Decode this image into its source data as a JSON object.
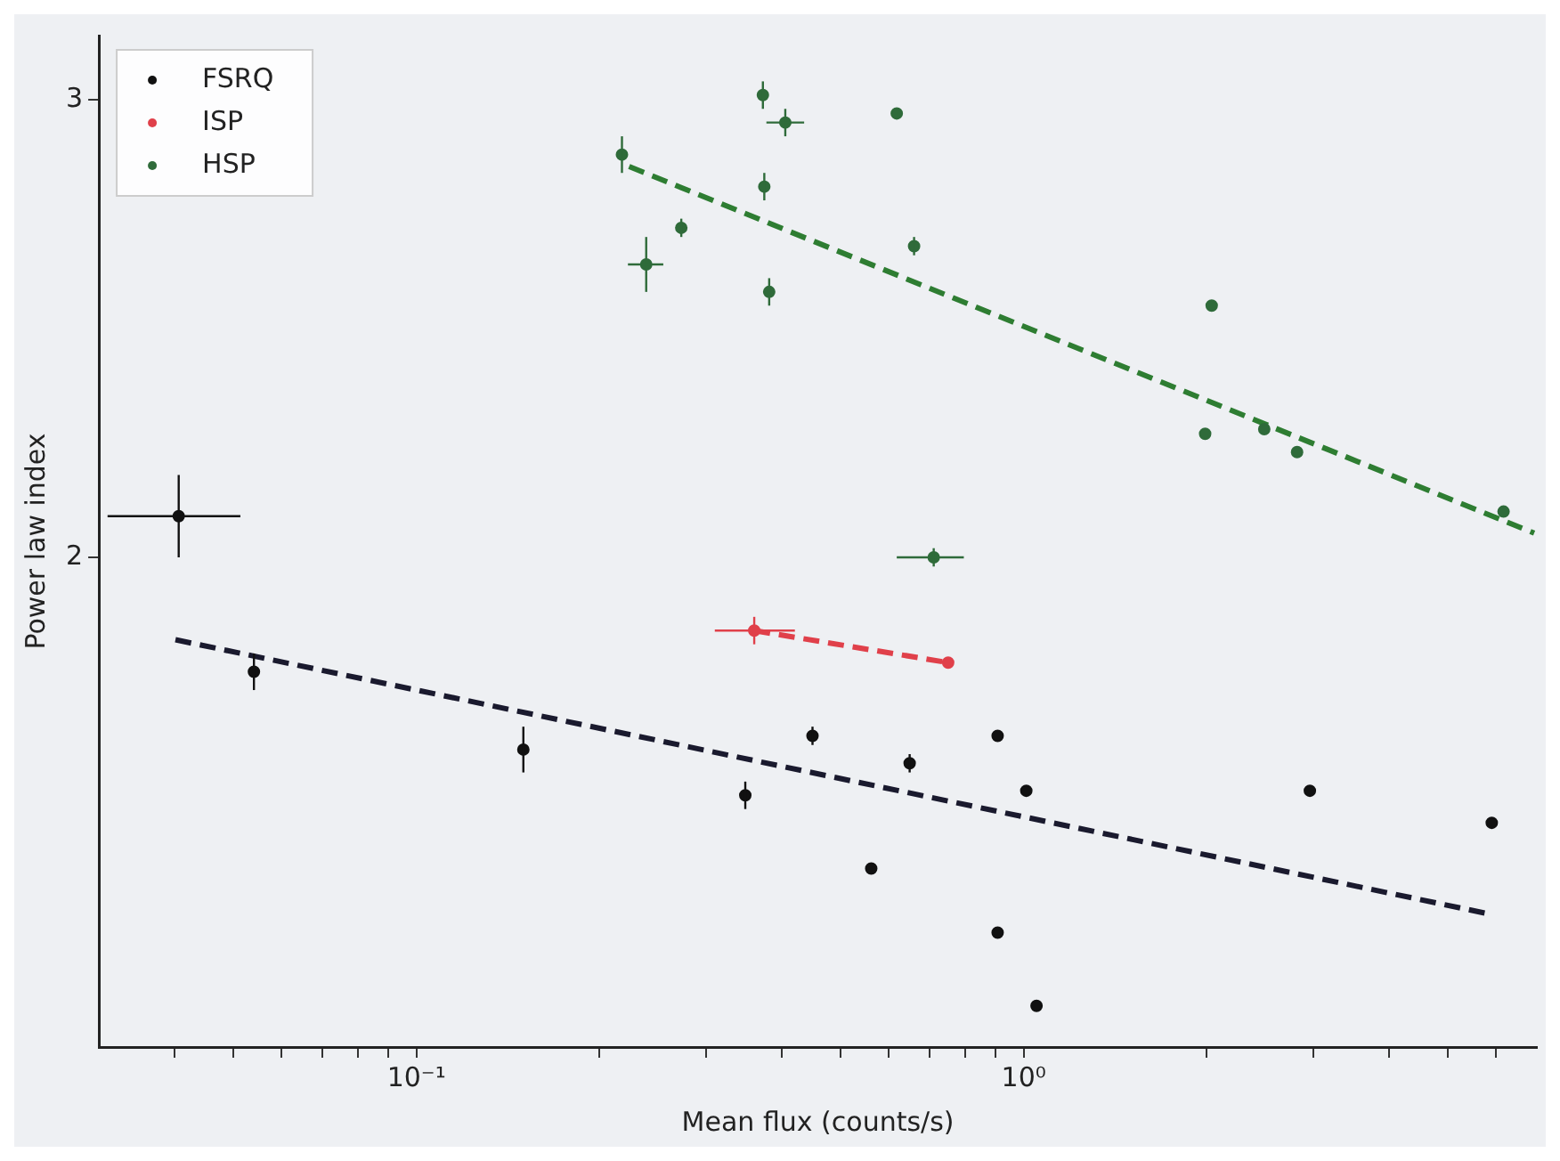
{
  "chart_data": {
    "type": "scatter",
    "xlabel": "Mean flux (counts/s)",
    "ylabel": "Power law index",
    "log": "x",
    "grid": false,
    "legend": "top left",
    "marker": "circle",
    "xlim": [
      0.03,
      7
    ],
    "ylim": [
      0.93,
      3.14
    ],
    "xticks": [
      {
        "value": 0.04,
        "label": null
      },
      {
        "value": 0.05,
        "label": null
      },
      {
        "value": 0.06,
        "label": null
      },
      {
        "value": 0.07,
        "label": null
      },
      {
        "value": 0.08,
        "label": null
      },
      {
        "value": 0.09,
        "label": null
      },
      {
        "value": 0.1,
        "label": "10⁻¹"
      },
      {
        "value": 0.2,
        "label": null
      },
      {
        "value": 0.3,
        "label": null
      },
      {
        "value": 0.4,
        "label": null
      },
      {
        "value": 0.5,
        "label": null
      },
      {
        "value": 0.6,
        "label": null
      },
      {
        "value": 0.7,
        "label": null
      },
      {
        "value": 0.8,
        "label": null
      },
      {
        "value": 0.9,
        "label": null
      },
      {
        "value": 1,
        "label": "10⁰"
      },
      {
        "value": 2,
        "label": null
      },
      {
        "value": 3,
        "label": null
      },
      {
        "value": 4,
        "label": null
      },
      {
        "value": 5,
        "label": null
      },
      {
        "value": 6,
        "label": null
      }
    ],
    "yticks": [
      2,
      3
    ],
    "series": [
      {
        "name": "FSRQ",
        "type": "scatter",
        "color": "#111111",
        "x": [
          0.0406,
          0.054,
          0.15,
          0.348,
          0.449,
          0.649,
          0.561,
          0.906,
          1.01,
          0.906,
          1.05,
          2.96,
          5.9
        ],
        "values": [
          2.09,
          1.75,
          1.58,
          1.48,
          1.61,
          1.55,
          1.32,
          1.61,
          1.49,
          1.18,
          1.02,
          1.49,
          1.42
        ],
        "errors": [
          0.09,
          0.04,
          0.05,
          0.03,
          0.02,
          0.02,
          null,
          null,
          null,
          null,
          null,
          null,
          null
        ],
        "xerrors": [
          [
            0.031,
            0.0513
          ],
          null,
          null,
          null,
          null,
          null,
          null,
          null,
          null,
          null,
          null,
          null,
          null
        ]
      },
      {
        "name": "ISP",
        "type": "scatter",
        "color": "#e0404a",
        "x": [
          0.36,
          0.751
        ],
        "values": [
          1.84,
          1.77
        ],
        "errors": [
          0.03,
          null
        ],
        "xerrors": [
          [
            0.31,
            0.42
          ],
          null
        ]
      },
      {
        "name": "HSP",
        "type": "scatter",
        "color": "#2f6b3a",
        "x": [
          0.218,
          0.372,
          0.405,
          0.618,
          0.374,
          0.273,
          0.239,
          0.381,
          0.66,
          0.711,
          2.04,
          1.99,
          2.49,
          2.82,
          6.17
        ],
        "values": [
          2.88,
          3.01,
          2.95,
          2.97,
          2.81,
          2.72,
          2.64,
          2.58,
          2.68,
          2.0,
          2.55,
          2.27,
          2.28,
          2.23,
          2.1
        ],
        "errors": [
          0.04,
          0.03,
          0.03,
          null,
          0.03,
          0.02,
          0.06,
          0.03,
          0.02,
          0.02,
          null,
          null,
          null,
          null,
          null
        ],
        "xerrors": [
          null,
          null,
          [
            0.377,
            0.435
          ],
          null,
          null,
          null,
          [
            0.223,
            0.255
          ],
          null,
          null,
          [
            0.618,
            0.797
          ],
          null,
          null,
          null,
          null,
          null
        ]
      },
      {
        "type": "line",
        "marker": "none",
        "color": "#1a1a2e",
        "line_style": "dashed",
        "x": [
          0.0401,
          5.88
        ],
        "values": [
          1.82,
          1.22
        ]
      },
      {
        "type": "line",
        "marker": "none",
        "color": "#e0404a",
        "line_style": "dashed",
        "x": [
          0.36,
          0.751
        ],
        "values": [
          1.84,
          1.77
        ]
      },
      {
        "type": "line",
        "marker": "none",
        "color": "#2e7d32",
        "line_style": "dashed",
        "x": [
          0.224,
          6.93
        ],
        "values": [
          2.854,
          2.053
        ]
      }
    ]
  }
}
